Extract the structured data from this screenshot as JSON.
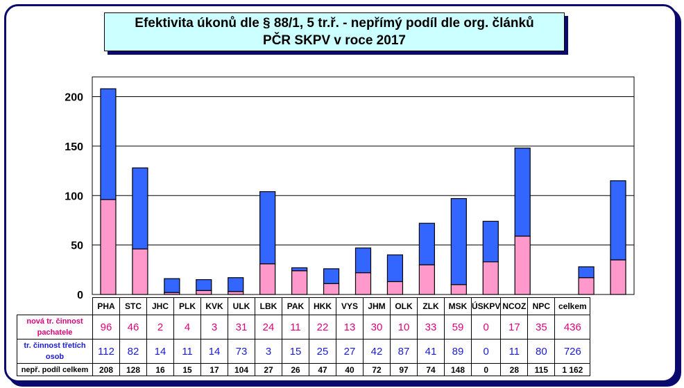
{
  "title_line1": "Efektivita úkonů dle § 88/1, 5 tr.ř. -  nepřímý podíl dle org. článků",
  "title_line2": "PČR SKPV v roce 2017",
  "chart_data": {
    "type": "bar",
    "stacked": true,
    "categories": [
      "PHA",
      "STC",
      "JHC",
      "PLK",
      "KVK",
      "ULK",
      "LBK",
      "PAK",
      "HKK",
      "VYS",
      "JHM",
      "OLK",
      "ZLK",
      "MSK",
      "ÚSKPV",
      "NCOZ",
      "NPC"
    ],
    "series": [
      {
        "name": "nová tr. činnost pachatele",
        "color": "#ff99cc",
        "values": [
          96,
          46,
          2,
          4,
          3,
          31,
          24,
          11,
          22,
          13,
          30,
          10,
          33,
          59,
          0,
          17,
          35
        ]
      },
      {
        "name": "tr. činnost třetích osob",
        "color": "#3366ff",
        "values": [
          112,
          82,
          14,
          11,
          14,
          73,
          3,
          15,
          25,
          27,
          42,
          87,
          41,
          89,
          0,
          11,
          80
        ]
      }
    ],
    "totals": [
      208,
      128,
      16,
      15,
      17,
      104,
      27,
      26,
      47,
      40,
      72,
      97,
      74,
      148,
      0,
      28,
      115
    ],
    "ylim": [
      0,
      220
    ],
    "yticks": [
      0,
      50,
      100,
      150,
      200
    ],
    "grid": true
  },
  "table": {
    "total_header": "celkem",
    "row_labels": [
      "nová tr. činnost pachatele",
      "tr. činnost třetích osob",
      "nepř. podíl celkem"
    ],
    "row_totals": [
      "436",
      "726",
      "1 162"
    ],
    "row1": [
      "96",
      "46",
      "2",
      "4",
      "3",
      "31",
      "24",
      "11",
      "22",
      "13",
      "30",
      "10",
      "33",
      "59",
      "0",
      "17",
      "35"
    ],
    "row2": [
      "112",
      "82",
      "14",
      "11",
      "14",
      "73",
      "3",
      "15",
      "25",
      "27",
      "42",
      "87",
      "41",
      "89",
      "0",
      "11",
      "80"
    ],
    "row3": [
      "208",
      "128",
      "16",
      "15",
      "17",
      "104",
      "27",
      "26",
      "47",
      "40",
      "72",
      "97",
      "74",
      "148",
      "0",
      "28",
      "115"
    ]
  }
}
